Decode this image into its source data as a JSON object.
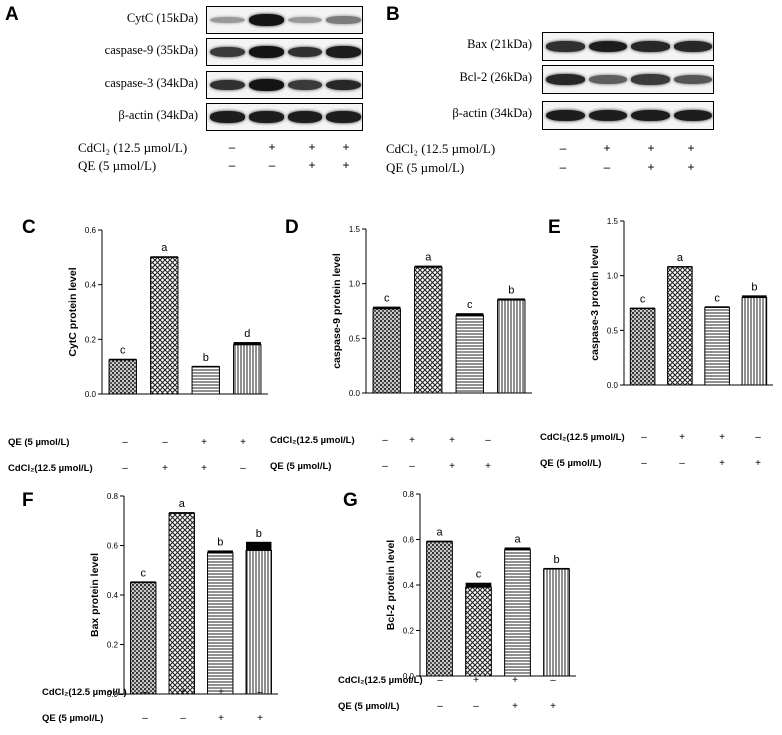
{
  "panels": {
    "A": "A",
    "B": "B",
    "C": "C",
    "D": "D",
    "E": "E",
    "F": "F",
    "G": "G"
  },
  "blots": {
    "A": {
      "rows": [
        {
          "label": "CytC (15kDa)",
          "intensity": [
            0.25,
            0.95,
            0.25,
            0.4
          ]
        },
        {
          "label": "caspase-9 (35kDa)",
          "intensity": [
            0.75,
            0.95,
            0.8,
            0.9
          ]
        },
        {
          "label": "caspase-3 (34kDa)",
          "intensity": [
            0.8,
            0.95,
            0.75,
            0.85
          ]
        },
        {
          "label": "β-actin (34kDa)",
          "intensity": [
            0.9,
            0.9,
            0.9,
            0.9
          ]
        }
      ],
      "treatments": [
        {
          "label": "CdCl₂ (12.5 µmol/L)",
          "signs": [
            "–",
            "+",
            "+",
            "+"
          ]
        },
        {
          "label": "QE (5 µmol/L)",
          "signs": [
            "–",
            "–",
            "+",
            "+"
          ]
        }
      ]
    },
    "B": {
      "rows": [
        {
          "label": "Bax (21kDa)",
          "intensity": [
            0.8,
            0.9,
            0.85,
            0.85
          ]
        },
        {
          "label": "Bcl-2 (26kDa)",
          "intensity": [
            0.85,
            0.55,
            0.75,
            0.6
          ]
        },
        {
          "label": "β-actin (34kDa)",
          "intensity": [
            0.9,
            0.9,
            0.9,
            0.9
          ]
        }
      ],
      "treatments": [
        {
          "label": "CdCl₂ (12.5 µmol/L)",
          "signs": [
            "–",
            "+",
            "+",
            "+"
          ]
        },
        {
          "label": "QE (5 µmol/L)",
          "signs": [
            "–",
            "–",
            "+",
            "+"
          ]
        }
      ]
    }
  },
  "chart_data": [
    {
      "id": "C",
      "type": "bar",
      "ylabel": "CytC protein level",
      "ylim": [
        0,
        0.6
      ],
      "ticks": [
        "0.0",
        "0.2",
        "0.4",
        "0.6"
      ],
      "values": [
        0.125,
        0.5,
        0.1,
        0.18
      ],
      "errors": [
        0.004,
        0.004,
        0.003,
        0.01
      ],
      "letters": [
        "c",
        "a",
        "b",
        "d"
      ],
      "patterns": [
        "dots",
        "cross",
        "hline",
        "vline"
      ],
      "treatments": [
        {
          "label": "QE (5 µmol/L)",
          "signs": [
            "–",
            "–",
            "+",
            "+"
          ]
        },
        {
          "label": "CdCl₂(12.5 µmol/L)",
          "signs": [
            "–",
            "+",
            "+",
            "–"
          ]
        }
      ]
    },
    {
      "id": "D",
      "type": "bar",
      "ylabel": "caspase-9 protein level",
      "ylim": [
        0,
        1.5
      ],
      "ticks": [
        "0.0",
        "0.5",
        "1.0",
        "1.5"
      ],
      "values": [
        0.77,
        1.15,
        0.71,
        0.85
      ],
      "errors": [
        0.02,
        0.015,
        0.02,
        0.015
      ],
      "letters": [
        "c",
        "a",
        "c",
        "b"
      ],
      "patterns": [
        "dots",
        "cross",
        "hline",
        "vline"
      ],
      "treatments": [
        {
          "label": "CdCl₂(12.5 µmol/L)",
          "signs": [
            "–",
            "+",
            "+",
            "–"
          ]
        },
        {
          "label": "QE (5 µmol/L)",
          "signs": [
            "–",
            "–",
            "+",
            "+"
          ]
        }
      ]
    },
    {
      "id": "E",
      "type": "bar",
      "ylabel": "caspase-3 protein level",
      "ylim": [
        0,
        1.5
      ],
      "ticks": [
        "0.0",
        "0.5",
        "1.0",
        "1.5"
      ],
      "values": [
        0.7,
        1.08,
        0.71,
        0.8
      ],
      "errors": [
        0.008,
        0.008,
        0.01,
        0.02
      ],
      "letters": [
        "c",
        "a",
        "c",
        "b"
      ],
      "patterns": [
        "dots",
        "cross",
        "hline",
        "vline"
      ],
      "treatments": [
        {
          "label": "CdCl₂(12.5 µmol/L)",
          "signs": [
            "–",
            "+",
            "+",
            "–"
          ]
        },
        {
          "label": "QE (5 µmol/L)",
          "signs": [
            "–",
            "–",
            "+",
            "+"
          ]
        }
      ]
    },
    {
      "id": "F",
      "type": "bar",
      "ylabel": "Bax protein level",
      "ylim": [
        0,
        0.8
      ],
      "ticks": [
        "0.0",
        "0.2",
        "0.4",
        "0.6",
        "0.8"
      ],
      "values": [
        0.45,
        0.73,
        0.57,
        0.58
      ],
      "errors": [
        0.005,
        0.005,
        0.01,
        0.035
      ],
      "letters": [
        "c",
        "a",
        "b",
        "b"
      ],
      "patterns": [
        "dots",
        "cross",
        "hline",
        "vline"
      ],
      "treatments": [
        {
          "label": "CdCl₂(12.5 µmol/L)",
          "signs": [
            "–",
            "+",
            "+",
            "–"
          ]
        },
        {
          "label": "QE (5 µmol/L)",
          "signs": [
            "–",
            "–",
            "+",
            "+"
          ]
        }
      ]
    },
    {
      "id": "G",
      "type": "bar",
      "ylabel": "Bcl-2 protein level",
      "ylim": [
        0,
        0.8
      ],
      "ticks": [
        "0.0",
        "0.2",
        "0.4",
        "0.6",
        "0.8"
      ],
      "values": [
        0.59,
        0.39,
        0.555,
        0.47
      ],
      "errors": [
        0.005,
        0.02,
        0.01,
        0.005
      ],
      "letters": [
        "a",
        "c",
        "a",
        "b"
      ],
      "patterns": [
        "dots",
        "cross",
        "hline",
        "vline"
      ],
      "treatments": [
        {
          "label": "CdCl₂(12.5 µmol/L)",
          "signs": [
            "–",
            "+",
            "+",
            "–"
          ]
        },
        {
          "label": "QE (5 µmol/L)",
          "signs": [
            "–",
            "–",
            "+",
            "+"
          ]
        }
      ]
    }
  ]
}
